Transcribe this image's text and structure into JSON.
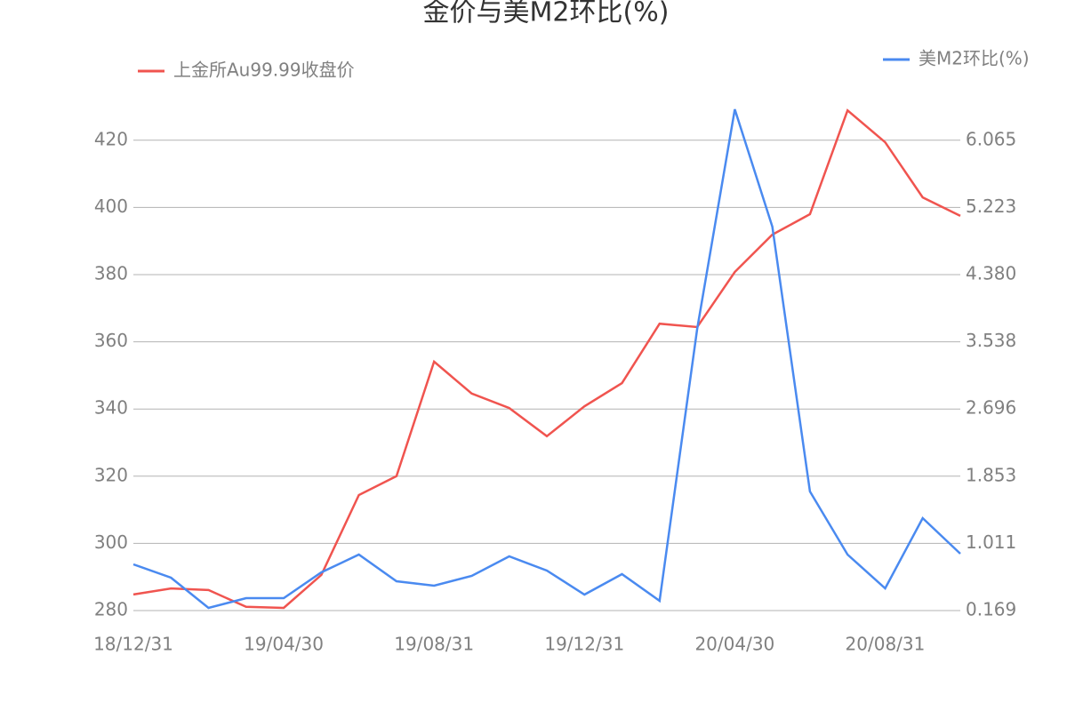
{
  "chart_data": {
    "type": "line",
    "title": "金价与美M2环比(%)",
    "categories": [
      "18/12/31",
      null,
      null,
      null,
      "19/04/30",
      null,
      null,
      null,
      "19/08/31",
      null,
      null,
      null,
      "19/12/31",
      null,
      null,
      null,
      "20/04/30",
      null,
      null,
      null,
      "20/08/31",
      null,
      null
    ],
    "series": [
      {
        "name": "上金所Au99.99收盘价",
        "color": "#f0544f",
        "values": [
          284.8,
          286.6,
          286.1,
          281.1,
          280.8,
          290.6,
          314.4,
          320,
          354.1,
          344.6,
          340.3,
          331.9,
          340.8,
          347.7,
          365.4,
          364.4,
          380.8,
          391.9,
          398,
          428.9,
          419.4,
          403,
          397.5
        ]
      },
      {
        "name": "美M2环比(%)",
        "color": "#4a8af0",
        "axis": "y2",
        "values": [
          0.748,
          0.581,
          0.202,
          0.325,
          0.325,
          0.648,
          0.871,
          0.537,
          0.481,
          0.604,
          0.849,
          0.67,
          0.37,
          0.626,
          0.292,
          3.701,
          6.453,
          4.982,
          1.662,
          0.871,
          0.448,
          1.328,
          0.882
        ]
      }
    ],
    "ylim": [
      280,
      430
    ],
    "yticks": [
      280,
      300,
      320,
      340,
      360,
      380,
      400,
      420
    ],
    "y2lim": [
      0.169,
      6.486
    ],
    "y2ticks": [
      0.169,
      1.011,
      1.853,
      {
        "value": 2.696,
        "label": "2.696"
      },
      3.538,
      {
        "value": 4.38,
        "label": "4.380"
      },
      5.223,
      6.065
    ],
    "grid": true
  }
}
